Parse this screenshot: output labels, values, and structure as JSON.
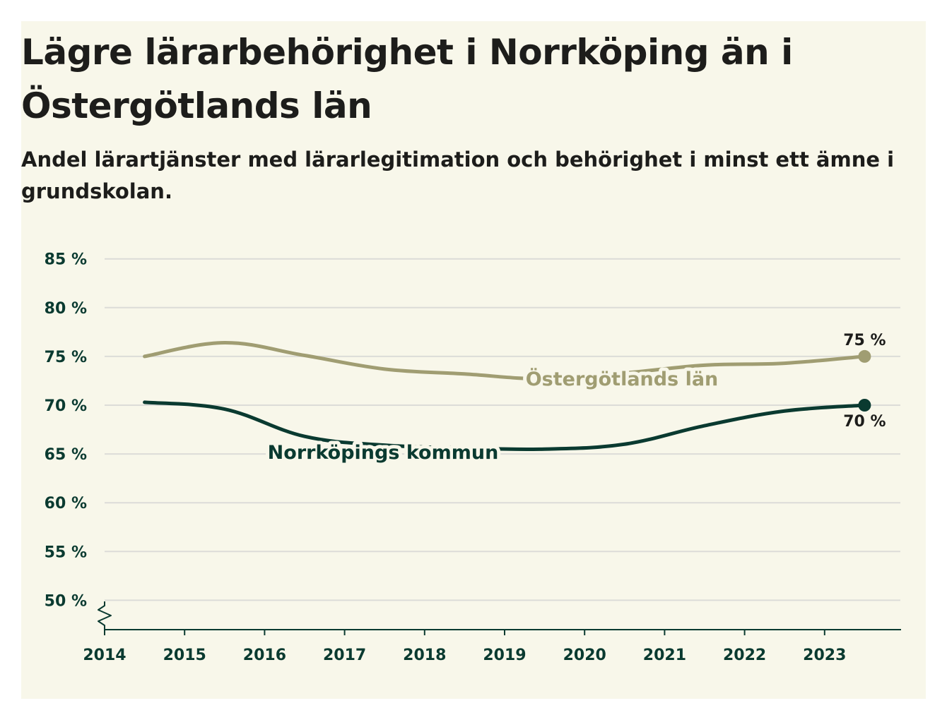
{
  "title": "Lägre lärarbehörighet i Norrköping än i Östergötlands län",
  "subtitle": "Andel lärartjänster med lärarlegitimation och behörighet i minst ett ämne i grundskolan.",
  "colors": {
    "background": "#f8f7ea",
    "grid": "#dcdcd8",
    "axis": "#0a3a30",
    "norrkoping": "#0a3a30",
    "ostergotland": "#a09d72"
  },
  "chart_data": {
    "type": "line",
    "title": "Lägre lärarbehörighet i Norrköping än i Östergötlands län",
    "subtitle": "Andel lärartjänster med lärarlegitimation och behörighet i minst ett ämne i grundskolan.",
    "xlabel": "",
    "ylabel": "",
    "x_ticks": [
      "2014",
      "2015",
      "2016",
      "2017",
      "2018",
      "2019",
      "2020",
      "2021",
      "2022",
      "2023"
    ],
    "y_ticks": [
      "50 %",
      "55 %",
      "60 %",
      "65 %",
      "70 %",
      "75 %",
      "80 %",
      "85 %"
    ],
    "y_tick_values": [
      50,
      55,
      60,
      65,
      70,
      75,
      80,
      85
    ],
    "xlim": [
      2014,
      2024
    ],
    "ylim": [
      47,
      85
    ],
    "grid": true,
    "series": [
      {
        "name": "Östergötlands län",
        "label": "Östergötlands län",
        "color": "#a09d72",
        "x": [
          2014.5,
          2015.5,
          2016.5,
          2017.5,
          2018.5,
          2019.5,
          2020.5,
          2021.5,
          2022.5,
          2023.5
        ],
        "values": [
          75.0,
          76.4,
          75.1,
          73.7,
          73.2,
          72.7,
          73.3,
          74.1,
          74.3,
          75.0
        ],
        "end_label": "75 %"
      },
      {
        "name": "Norrköpings kommun",
        "label": "Norrköpings kommun",
        "color": "#0a3a30",
        "x": [
          2014.5,
          2015.5,
          2016.5,
          2017.5,
          2018.5,
          2019.5,
          2020.5,
          2021.5,
          2022.5,
          2023.5
        ],
        "values": [
          70.3,
          69.6,
          66.8,
          65.9,
          65.6,
          65.5,
          66.0,
          67.9,
          69.4,
          70.0
        ],
        "end_label": "70 %"
      }
    ]
  }
}
